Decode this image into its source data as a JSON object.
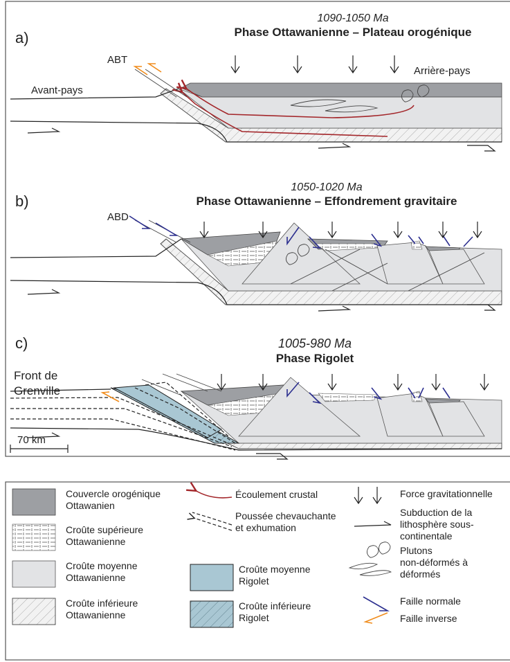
{
  "panels": [
    {
      "label": "a)",
      "age": "1090-1050 Ma",
      "title": "Phase Ottawanienne – Plateau orogénique",
      "annotations": [
        "ABT",
        "Avant-pays",
        "Arrière-pays"
      ]
    },
    {
      "label": "b)",
      "age": "1050-1020 Ma",
      "title": "Phase Ottawanienne – Effondrement gravitaire",
      "annotations": [
        "ABD"
      ]
    },
    {
      "label": "c)",
      "age": "1005-980 Ma",
      "title": "Phase Rigolet",
      "annotations": [
        "Front de",
        "Grenville"
      ]
    }
  ],
  "scale_bar": "70 km",
  "legend": [
    {
      "lines": [
        "Couvercle orogénique",
        "Ottawanien"
      ]
    },
    {
      "lines": [
        "Croûte supérieure",
        "Ottawanienne"
      ]
    },
    {
      "lines": [
        "Croûte moyenne",
        "Ottawanienne"
      ]
    },
    {
      "lines": [
        "Croûte inférieure",
        "Ottawanienne"
      ]
    },
    {
      "lines": [
        "Écoulement crustal"
      ]
    },
    {
      "lines": [
        "Poussée chevauchante",
        "et exhumation"
      ]
    },
    {
      "lines": [
        "Croûte moyenne",
        "Rigolet"
      ]
    },
    {
      "lines": [
        "Croûte inférieure",
        "Rigolet"
      ]
    },
    {
      "lines": [
        "Force gravitationnelle"
      ]
    },
    {
      "lines": [
        "Subduction de la",
        "lithosphère sous-",
        "continentale"
      ]
    },
    {
      "lines": [
        "Plutons",
        "non-déformés à",
        "déformés"
      ]
    },
    {
      "lines": [
        "Faille normale"
      ]
    },
    {
      "lines": [
        "Faille inverse"
      ]
    }
  ]
}
